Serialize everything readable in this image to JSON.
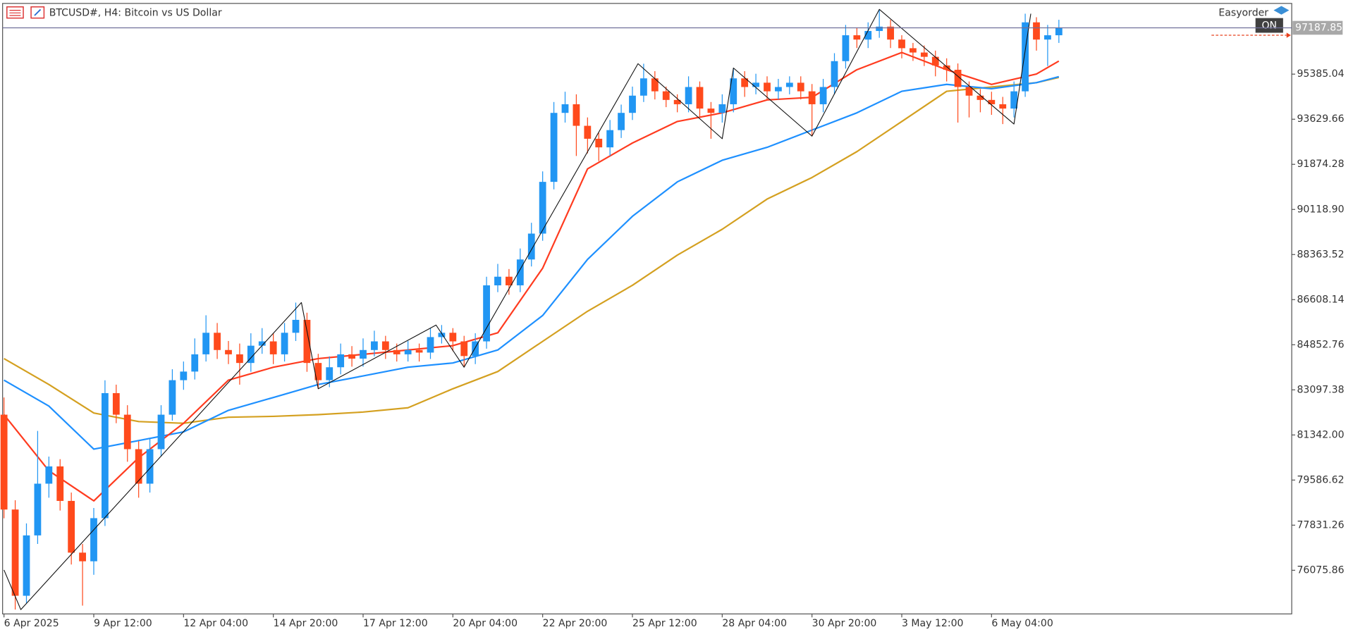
{
  "chart_data": {
    "type": "candlestick",
    "title": "BTCUSD#, H4:  Bitcoin vs US Dollar",
    "panel": {
      "plugin": "Easyorder",
      "button": "ON"
    },
    "up_color": "#2196f3",
    "down_color": "#ff4a1c",
    "x": [
      "2025-04-06T20:00",
      "2025-04-07T04:00",
      "2025-04-07T12:00",
      "2025-04-07T20:00",
      "2025-04-08T04:00",
      "2025-04-08T12:00",
      "2025-04-08T20:00",
      "2025-04-09T04:00",
      "2025-04-09T12:00",
      "2025-04-09T20:00",
      "2025-04-10T04:00",
      "2025-04-10T12:00",
      "2025-04-10T20:00",
      "2025-04-11T04:00",
      "2025-04-11T12:00",
      "2025-04-11T20:00",
      "2025-04-12T04:00",
      "2025-04-12T12:00",
      "2025-04-12T20:00",
      "2025-04-13T04:00",
      "2025-04-13T12:00",
      "2025-04-13T20:00",
      "2025-04-14T04:00",
      "2025-04-14T12:00",
      "2025-04-14T20:00",
      "2025-04-15T04:00",
      "2025-04-15T12:00",
      "2025-04-15T20:00",
      "2025-04-16T04:00",
      "2025-04-16T12:00",
      "2025-04-16T20:00",
      "2025-04-17T04:00",
      "2025-04-17T12:00",
      "2025-04-17T20:00",
      "2025-04-18T04:00",
      "2025-04-18T12:00",
      "2025-04-18T20:00",
      "2025-04-19T04:00",
      "2025-04-19T12:00",
      "2025-04-19T20:00",
      "2025-04-20T04:00",
      "2025-04-20T12:00",
      "2025-04-20T20:00",
      "2025-04-21T04:00",
      "2025-04-21T12:00",
      "2025-04-21T20:00",
      "2025-04-22T04:00",
      "2025-04-22T12:00",
      "2025-04-22T20:00",
      "2025-04-23T04:00",
      "2025-04-23T12:00",
      "2025-04-23T20:00",
      "2025-04-24T04:00",
      "2025-04-24T12:00",
      "2025-04-24T20:00",
      "2025-04-25T04:00",
      "2025-04-25T12:00",
      "2025-04-25T20:00",
      "2025-04-26T04:00",
      "2025-04-26T12:00",
      "2025-04-26T20:00",
      "2025-04-27T04:00",
      "2025-04-27T12:00",
      "2025-04-27T20:00",
      "2025-04-28T04:00",
      "2025-04-28T12:00",
      "2025-04-28T20:00",
      "2025-04-29T04:00",
      "2025-04-29T12:00",
      "2025-04-29T20:00",
      "2025-04-30T04:00",
      "2025-04-30T12:00",
      "2025-04-30T20:00",
      "2025-05-01T04:00",
      "2025-05-01T12:00",
      "2025-05-01T20:00",
      "2025-05-02T04:00",
      "2025-05-02T12:00",
      "2025-05-02T20:00",
      "2025-05-03T04:00",
      "2025-05-03T12:00",
      "2025-05-03T20:00",
      "2025-05-04T04:00",
      "2025-05-04T12:00",
      "2025-05-04T20:00",
      "2025-05-05T04:00",
      "2025-05-05T12:00",
      "2025-05-05T20:00",
      "2025-05-06T04:00",
      "2025-05-06T12:00",
      "2025-05-06T20:00",
      "2025-05-07T04:00",
      "2025-05-07T12:00",
      "2025-05-07T20:00",
      "2025-05-08T04:00"
    ],
    "open": [
      82131,
      78440,
      75084,
      77433,
      79446,
      80118,
      78775,
      76762,
      76426,
      78104,
      82970,
      82131,
      80789,
      79446,
      80789,
      82131,
      83474,
      83809,
      84480,
      85319,
      84648,
      84480,
      84144,
      84816,
      84984,
      84480,
      85319,
      85822,
      84144,
      83474,
      83977,
      84480,
      84313,
      84648,
      84984,
      84648,
      84480,
      84648,
      84548,
      85151,
      85319,
      84984,
      84413,
      84984,
      87165,
      87501,
      87165,
      88172,
      89179,
      91192,
      93877,
      94213,
      93374,
      92870,
      92535,
      93206,
      93877,
      94548,
      95220,
      94716,
      94381,
      94213,
      94884,
      94045,
      93877,
      94213,
      95220,
      94884,
      95052,
      94716,
      94884,
      95050,
      94716,
      94213,
      94884,
      95891,
      96898,
      96730,
      97065,
      97233,
      96730,
      96394,
      96226,
      96059,
      95723,
      95555,
      94884,
      94548,
      94381,
      94213,
      94045,
      94716,
      97401,
      96730,
      96898
    ],
    "high": [
      82800,
      78800,
      77900,
      81500,
      80500,
      80400,
      79100,
      77100,
      78500,
      83470,
      83300,
      82500,
      81100,
      81200,
      82500,
      83900,
      84200,
      85100,
      86000,
      85700,
      85000,
      84900,
      85300,
      85500,
      85300,
      85700,
      86494,
      86100,
      84500,
      84400,
      84900,
      84800,
      85100,
      85400,
      85200,
      84900,
      85000,
      84900,
      85500,
      85621,
      85500,
      85200,
      85300,
      87500,
      88000,
      87800,
      88600,
      89600,
      91600,
      94300,
      94700,
      94600,
      93700,
      93100,
      93600,
      94200,
      94900,
      95790,
      95500,
      94900,
      94600,
      95300,
      95100,
      94300,
      94600,
      95622,
      95500,
      95400,
      95300,
      95200,
      95300,
      95300,
      95000,
      95200,
      96200,
      97300,
      97200,
      97400,
      97904,
      97500,
      96900,
      96600,
      96500,
      96300,
      96000,
      95800,
      95100,
      94800,
      94700,
      94500,
      95100,
      97737,
      97600,
      97300,
      97500
    ],
    "low": [
      78100,
      74546,
      74800,
      77100,
      78900,
      78400,
      76300,
      74700,
      75900,
      77800,
      81800,
      80300,
      78900,
      79100,
      80500,
      81900,
      83100,
      83500,
      84200,
      84300,
      84100,
      83300,
      83800,
      84500,
      84100,
      84200,
      85000,
      83800,
      83138,
      83200,
      83700,
      84000,
      84000,
      84400,
      84300,
      84200,
      84200,
      84200,
      84300,
      84900,
      84600,
      83977,
      84100,
      84700,
      86900,
      86800,
      86900,
      87900,
      88900,
      90900,
      93500,
      92200,
      92300,
      92000,
      92200,
      92900,
      93600,
      94300,
      94400,
      94100,
      93900,
      93900,
      93700,
      92870,
      93500,
      93900,
      94500,
      94600,
      94400,
      94400,
      94600,
      94400,
      92971,
      93900,
      94600,
      95600,
      96400,
      96400,
      96800,
      96400,
      96000,
      95900,
      95700,
      95300,
      95100,
      93500,
      93700,
      93900,
      93800,
      93441,
      93700,
      94500,
      96300,
      95700,
      96600
    ],
    "close": [
      78440,
      75084,
      77433,
      79446,
      80118,
      78775,
      76762,
      76426,
      78104,
      82970,
      82131,
      80789,
      79446,
      80789,
      82131,
      83474,
      83809,
      84480,
      85319,
      84648,
      84480,
      84144,
      84816,
      84984,
      84480,
      85319,
      85822,
      84144,
      83474,
      83977,
      84480,
      84313,
      84648,
      84984,
      84648,
      84480,
      84648,
      84548,
      85151,
      85319,
      84984,
      84413,
      84984,
      87165,
      87501,
      87165,
      88172,
      89179,
      91192,
      93877,
      94213,
      93374,
      92870,
      92535,
      93206,
      93877,
      94548,
      95220,
      94716,
      94381,
      94213,
      94884,
      94045,
      93877,
      94213,
      95220,
      94884,
      95052,
      94716,
      94884,
      95050,
      94716,
      94213,
      94884,
      95891,
      96898,
      96730,
      97065,
      97233,
      96730,
      96394,
      96226,
      96059,
      95723,
      95555,
      94884,
      94548,
      94381,
      94213,
      94045,
      94716,
      97401,
      96730,
      96898,
      97187.85
    ],
    "lines": [
      {
        "color": "#ff3b1f",
        "x": [
          "2025-04-06T20:00",
          "2025-04-08T04:00",
          "2025-04-09T12:00",
          "2025-04-10T20:00",
          "2025-04-12T04:00",
          "2025-04-13T12:00",
          "2025-04-14T20:00",
          "2025-04-16T04:00",
          "2025-04-17T12:00",
          "2025-04-18T20:00",
          "2025-04-20T04:00",
          "2025-04-21T12:00",
          "2025-04-22T20:00",
          "2025-04-24T04:00",
          "2025-04-25T12:00",
          "2025-04-26T20:00",
          "2025-04-28T04:00",
          "2025-04-29T12:00",
          "2025-04-30T20:00",
          "2025-05-02T04:00",
          "2025-05-03T12:00",
          "2025-05-04T20:00",
          "2025-05-06T04:00",
          "2025-05-07T12:00",
          "2025-05-08T04:00"
        ],
        "values": [
          82131,
          79950,
          78775,
          80453,
          81796,
          83474,
          83977,
          84313,
          84480,
          84648,
          84816,
          85319,
          87836,
          91696,
          92703,
          93542,
          93877,
          94381,
          94481,
          95555,
          96226,
          95555,
          94985,
          95387,
          95891
        ]
      },
      {
        "color": "#1e90ff",
        "x": [
          "2025-04-06T20:00",
          "2025-04-08T04:00",
          "2025-04-09T12:00",
          "2025-04-10T20:00",
          "2025-04-12T04:00",
          "2025-04-13T12:00",
          "2025-04-14T20:00",
          "2025-04-16T04:00",
          "2025-04-17T12:00",
          "2025-04-18T20:00",
          "2025-04-20T04:00",
          "2025-04-21T12:00",
          "2025-04-22T20:00",
          "2025-04-24T04:00",
          "2025-04-25T12:00",
          "2025-04-26T20:00",
          "2025-04-28T04:00",
          "2025-04-29T12:00",
          "2025-04-30T20:00",
          "2025-05-02T04:00",
          "2025-05-03T12:00",
          "2025-05-04T20:00",
          "2025-05-06T04:00",
          "2025-05-07T12:00",
          "2025-05-08T04:00"
        ],
        "values": [
          83474,
          82467,
          80789,
          81124,
          81460,
          82299,
          82802,
          83306,
          83641,
          83977,
          84144,
          84648,
          85991,
          88172,
          89850,
          91192,
          92031,
          92535,
          93206,
          93877,
          94716,
          94985,
          94817,
          95052,
          95287
        ]
      },
      {
        "color": "#d4a020",
        "x": [
          "2025-04-06T20:00",
          "2025-04-08T04:00",
          "2025-04-09T12:00",
          "2025-04-10T20:00",
          "2025-04-12T04:00",
          "2025-04-13T12:00",
          "2025-04-14T20:00",
          "2025-04-16T04:00",
          "2025-04-17T12:00",
          "2025-04-18T20:00",
          "2025-04-20T04:00",
          "2025-04-21T12:00",
          "2025-04-22T20:00",
          "2025-04-24T04:00",
          "2025-04-25T12:00",
          "2025-04-26T20:00",
          "2025-04-28T04:00",
          "2025-04-29T12:00",
          "2025-04-30T20:00",
          "2025-05-02T04:00",
          "2025-05-03T12:00",
          "2025-05-04T20:00",
          "2025-05-06T04:00",
          "2025-05-07T12:00",
          "2025-05-08T04:00"
        ],
        "values": [
          84313,
          83306,
          82198,
          81863,
          81796,
          82031,
          82064,
          82131,
          82232,
          82400,
          83138,
          83809,
          84984,
          86158,
          87165,
          88340,
          89347,
          90521,
          91360,
          92367,
          93542,
          94716,
          94884,
          95052,
          95253
        ]
      }
    ],
    "zigzag": {
      "color": "#111111",
      "x": [
        "2025-04-06T20:00",
        "2025-04-07T08:00",
        "2025-04-15T16:00",
        "2025-04-16T04:00",
        "2025-04-19T16:00",
        "2025-04-20T12:00",
        "2025-04-25T16:00",
        "2025-04-28T04:00",
        "2025-04-28T12:00",
        "2025-04-30T20:00",
        "2025-05-02T20:00",
        "2025-05-06T20:00",
        "2025-05-07T08:00"
      ],
      "values": [
        76090,
        74546,
        86494,
        83138,
        85621,
        83977,
        95790,
        92870,
        95622,
        92971,
        97904,
        93441,
        97737
      ]
    },
    "order_line": 96898,
    "xlim": [
      "2025-04-06T19:00",
      "2025-05-15T02:00"
    ],
    "ylim": [
      74377,
      98070
    ],
    "xticks": [
      {
        "value": "2025-04-06T20:00",
        "label": "6 Apr 2025"
      },
      {
        "value": "2025-04-09T12:00",
        "label": "9 Apr 12:00"
      },
      {
        "value": "2025-04-12T04:00",
        "label": "12 Apr 04:00"
      },
      {
        "value": "2025-04-14T20:00",
        "label": "14 Apr 20:00"
      },
      {
        "value": "2025-04-17T12:00",
        "label": "17 Apr 12:00"
      },
      {
        "value": "2025-04-20T04:00",
        "label": "20 Apr 04:00"
      },
      {
        "value": "2025-04-22T20:00",
        "label": "22 Apr 20:00"
      },
      {
        "value": "2025-04-25T12:00",
        "label": "25 Apr 12:00"
      },
      {
        "value": "2025-04-28T04:00",
        "label": "28 Apr 04:00"
      },
      {
        "value": "2025-04-30T20:00",
        "label": "30 Apr 20:00"
      },
      {
        "value": "2025-05-03T12:00",
        "label": "3 May 12:00"
      },
      {
        "value": "2025-05-06T04:00",
        "label": "6 May 04:00"
      }
    ],
    "yticks": [
      95385.04,
      93629.66,
      91874.28,
      {
        "value": 90118.9,
        "label": "90118.90"
      },
      88363.52,
      86608.14,
      84852.76,
      83097.38,
      {
        "value": 81342,
        "label": "81342.00"
      },
      79586.62,
      77831.26,
      76075.86
    ]
  }
}
